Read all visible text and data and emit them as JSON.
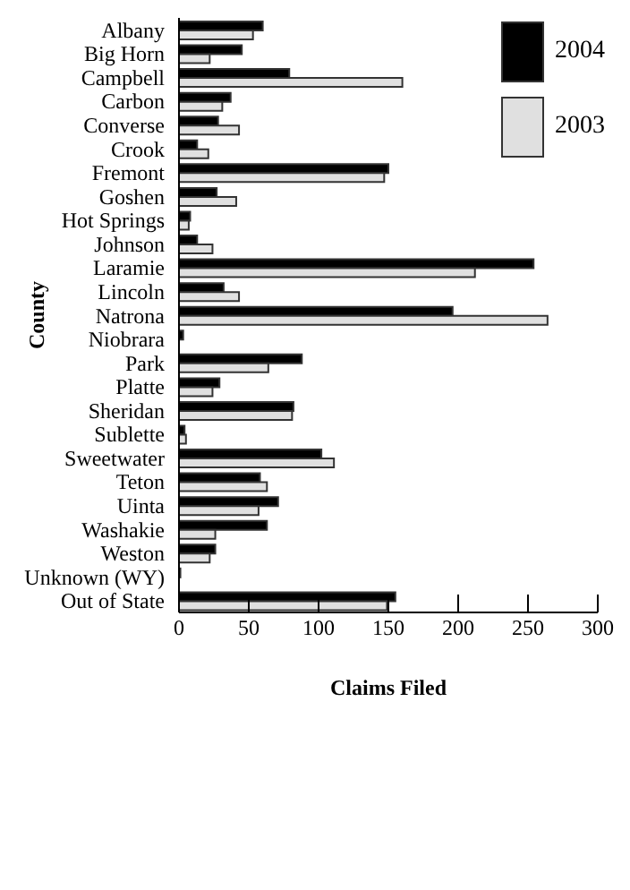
{
  "chart_data": {
    "type": "bar",
    "orientation": "horizontal",
    "xlabel": "Claims Filed",
    "ylabel": "County",
    "categories": [
      "Albany",
      "Big Horn",
      "Campbell",
      "Carbon",
      "Converse",
      "Crook",
      "Fremont",
      "Goshen",
      "Hot Springs",
      "Johnson",
      "Laramie",
      "Lincoln",
      "Natrona",
      "Niobrara",
      "Park",
      "Platte",
      "Sheridan",
      "Sublette",
      "Sweetwater",
      "Teton",
      "Uinta",
      "Washakie",
      "Weston",
      "Unknown (WY)",
      "Out of State"
    ],
    "series": [
      {
        "name": "2004",
        "color": "#000000",
        "values": [
          60,
          45,
          79,
          37,
          28,
          13,
          150,
          27,
          8,
          13,
          254,
          32,
          196,
          3,
          88,
          29,
          82,
          4,
          102,
          58,
          71,
          63,
          26,
          1,
          155
        ]
      },
      {
        "name": "2003",
        "color": "#e0e0e0",
        "values": [
          53,
          22,
          160,
          31,
          43,
          21,
          147,
          41,
          7,
          24,
          212,
          43,
          264,
          null,
          64,
          24,
          81,
          5,
          111,
          63,
          57,
          26,
          22,
          null,
          149
        ]
      }
    ],
    "xlim": [
      0,
      300
    ],
    "xticks": [
      0,
      50,
      100,
      150,
      200,
      250,
      300
    ],
    "grid": false,
    "legend": "top right"
  }
}
